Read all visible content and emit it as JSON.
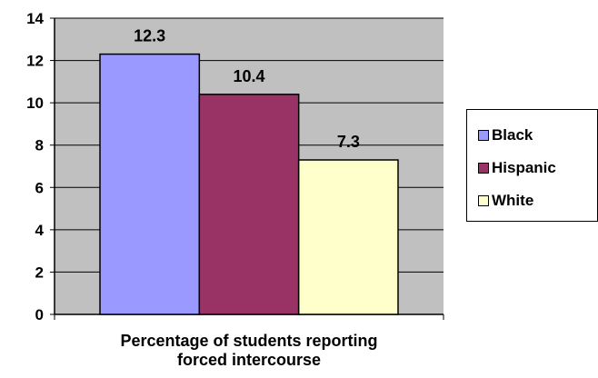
{
  "chart_data": {
    "type": "bar",
    "title": "",
    "xlabel_lines": [
      "Percentage of students reporting",
      "forced intercourse"
    ],
    "ylabel": "",
    "ylim": [
      0,
      14
    ],
    "yticks": [
      "0",
      "2",
      "4",
      "6",
      "8",
      "10",
      "12",
      "14"
    ],
    "grid": true,
    "legend_position": "right",
    "series": [
      {
        "name": "Black",
        "value": 12.3,
        "label": "12.3",
        "color": "#9999ff"
      },
      {
        "name": "Hispanic",
        "value": 10.4,
        "label": "10.4",
        "color": "#993366"
      },
      {
        "name": "White",
        "value": 7.3,
        "label": "7.3",
        "color": "#ffffcc"
      }
    ],
    "plot_background": "#c0c0c0"
  }
}
